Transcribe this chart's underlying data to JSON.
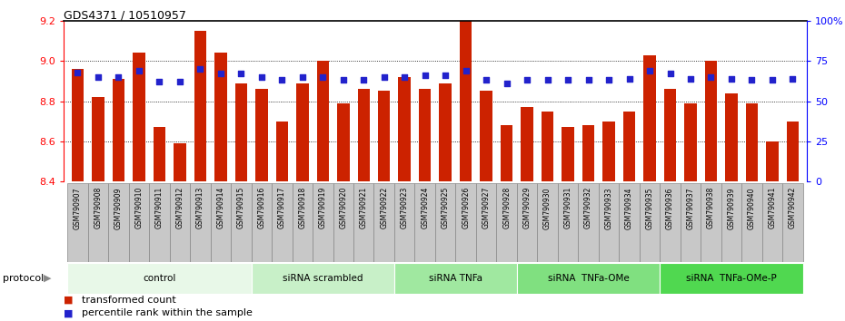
{
  "title": "GDS4371 / 10510957",
  "samples": [
    "GSM790907",
    "GSM790908",
    "GSM790909",
    "GSM790910",
    "GSM790911",
    "GSM790912",
    "GSM790913",
    "GSM790914",
    "GSM790915",
    "GSM790916",
    "GSM790917",
    "GSM790918",
    "GSM790919",
    "GSM790920",
    "GSM790921",
    "GSM790922",
    "GSM790923",
    "GSM790924",
    "GSM790925",
    "GSM790926",
    "GSM790927",
    "GSM790928",
    "GSM790929",
    "GSM790930",
    "GSM790931",
    "GSM790932",
    "GSM790933",
    "GSM790934",
    "GSM790935",
    "GSM790936",
    "GSM790937",
    "GSM790938",
    "GSM790939",
    "GSM790940",
    "GSM790941",
    "GSM790942"
  ],
  "bar_values": [
    8.96,
    8.82,
    8.91,
    9.04,
    8.67,
    8.59,
    9.15,
    9.04,
    8.89,
    8.86,
    8.7,
    8.89,
    9.0,
    8.79,
    8.86,
    8.85,
    8.92,
    8.86,
    8.89,
    9.2,
    8.85,
    8.68,
    8.77,
    8.75,
    8.67,
    8.68,
    8.7,
    8.75,
    9.03,
    8.86,
    8.79,
    9.0,
    8.84,
    8.79,
    8.6,
    8.7
  ],
  "percentile_values": [
    68,
    65,
    65,
    69,
    62,
    62,
    70,
    67,
    67,
    65,
    63,
    65,
    65,
    63,
    63,
    65,
    65,
    66,
    66,
    69,
    63,
    61,
    63,
    63,
    63,
    63,
    63,
    64,
    69,
    67,
    64,
    65,
    64,
    63,
    63,
    64
  ],
  "groups": [
    {
      "label": "control",
      "start": 0,
      "end": 9
    },
    {
      "label": "siRNA scrambled",
      "start": 9,
      "end": 16
    },
    {
      "label": "siRNA TNFa",
      "start": 16,
      "end": 22
    },
    {
      "label": "siRNA  TNFa-OMe",
      "start": 22,
      "end": 29
    },
    {
      "label": "siRNA  TNFa-OMe-P",
      "start": 29,
      "end": 36
    }
  ],
  "group_colors": [
    "#e8f8e8",
    "#c8f0c8",
    "#a0e8a0",
    "#80e080",
    "#50d850"
  ],
  "ylim_left": [
    8.4,
    9.2
  ],
  "ylim_right": [
    0,
    100
  ],
  "bar_color": "#cc2200",
  "dot_color": "#2222cc",
  "tick_bg_color": "#c8c8c8",
  "tick_border_color": "#999999"
}
